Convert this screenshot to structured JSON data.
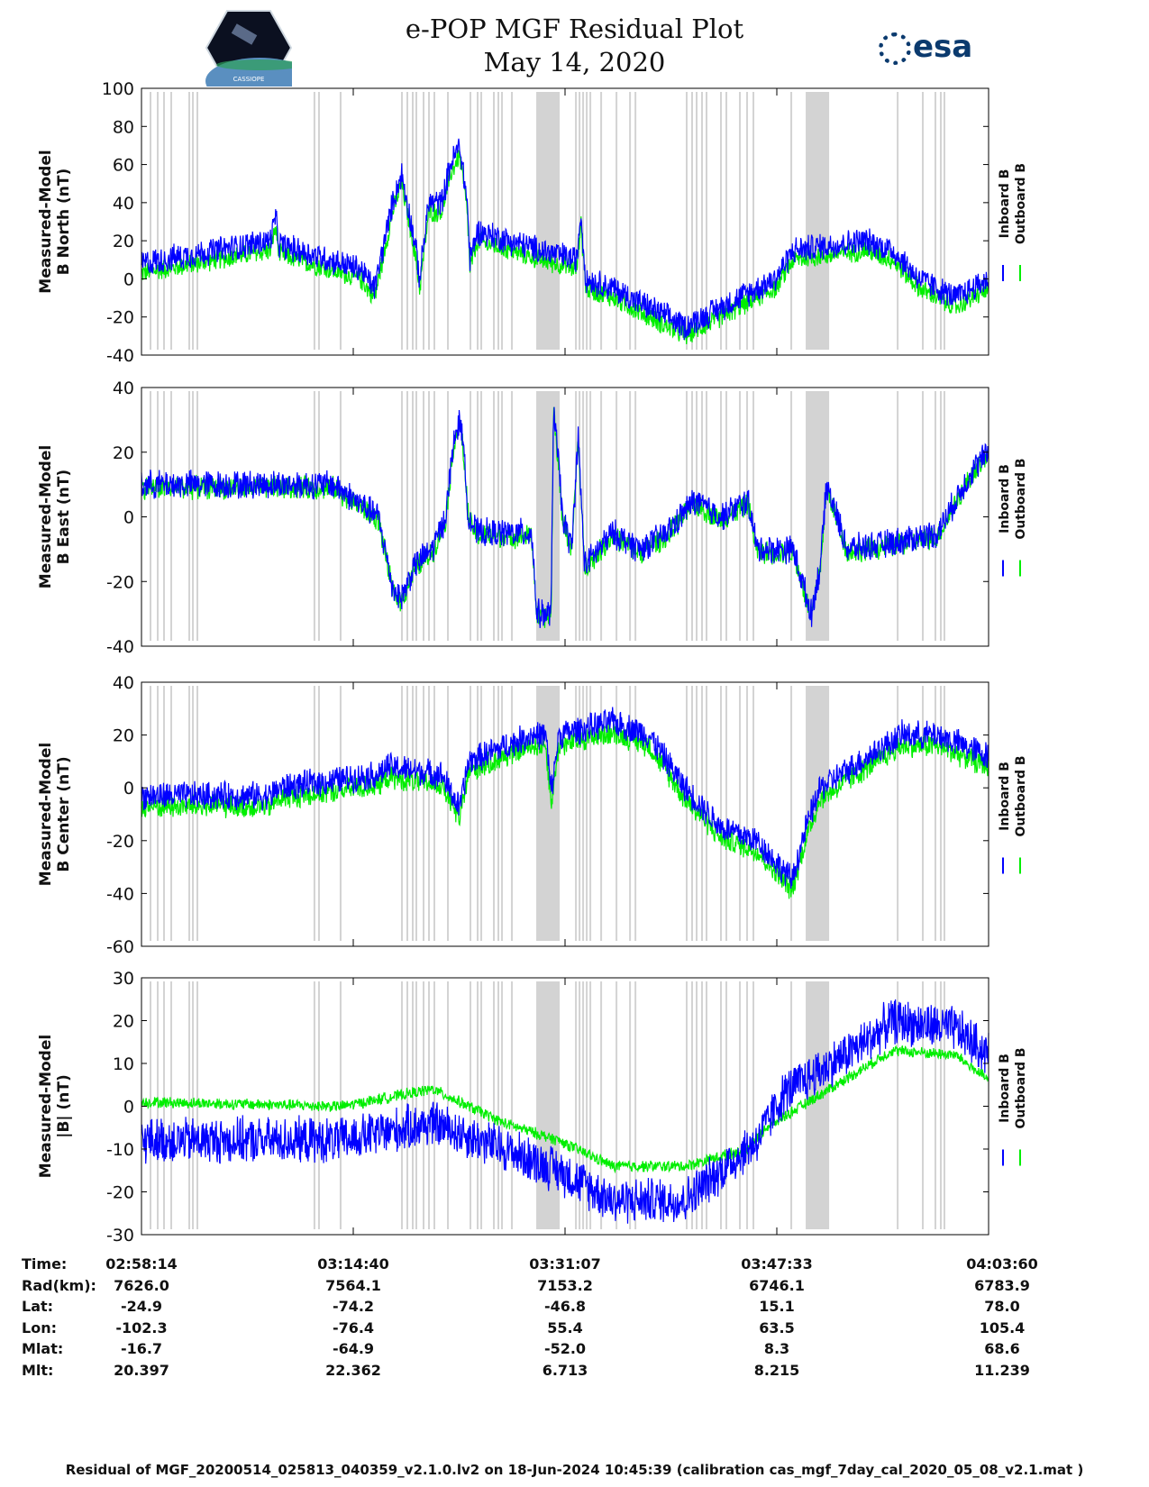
{
  "header": {
    "title_line1": "e-POP MGF Residual Plot",
    "title_line2": "May 14, 2020",
    "logo_left_text": "CASSIOPE",
    "logo_right_text": "esa"
  },
  "colors": {
    "inboard": "#0000ff",
    "outboard": "#00ee00",
    "gap": "#d3d3d3",
    "axis": "#000000"
  },
  "chart_data": [
    {
      "type": "line",
      "ylabel_line1": "Measured-Model",
      "ylabel_line2": "B North (nT)",
      "ylim": [
        -40,
        100
      ],
      "yticks": [
        "100",
        "80",
        "60",
        "40",
        "20",
        "0",
        "-20",
        "-40"
      ],
      "yvals": [
        100,
        80,
        60,
        40,
        20,
        0,
        -20,
        -40
      ],
      "legend": [
        "Inboard B",
        "Outboard B"
      ],
      "noise": [
        8,
        6
      ],
      "outboard_offset": -5,
      "series_trend": [
        [
          0,
          8
        ],
        [
          10,
          20
        ],
        [
          10.4,
          32
        ],
        [
          10.7,
          18
        ],
        [
          17,
          5
        ],
        [
          18.1,
          -5
        ],
        [
          19.5,
          40
        ],
        [
          20.2,
          55
        ],
        [
          21.2,
          20
        ],
        [
          21.6,
          0
        ],
        [
          22.3,
          40
        ],
        [
          23.3,
          40
        ],
        [
          24,
          60
        ],
        [
          24.7,
          70
        ],
        [
          25.3,
          40
        ],
        [
          25.5,
          10
        ],
        [
          26.1,
          25
        ],
        [
          31,
          15
        ],
        [
          33.8,
          10
        ],
        [
          34.1,
          35
        ],
        [
          34.5,
          0
        ],
        [
          36.6,
          -5
        ],
        [
          42.2,
          -25
        ],
        [
          45,
          -15
        ],
        [
          49.2,
          0
        ],
        [
          50.6,
          15
        ],
        [
          56.2,
          20
        ],
        [
          58.3,
          15
        ],
        [
          60.4,
          0
        ],
        [
          63.2,
          -10
        ],
        [
          65.8,
          0
        ]
      ]
    },
    {
      "type": "line",
      "ylabel_line1": "Measured-Model",
      "ylabel_line2": "B East (nT)",
      "ylim": [
        -40,
        40
      ],
      "yticks": [
        "40",
        "20",
        "0",
        "-20",
        "-40"
      ],
      "yvals": [
        40,
        20,
        0,
        -20,
        -40
      ],
      "legend": [
        "Inboard B",
        "Outboard B"
      ],
      "noise": [
        5,
        4
      ],
      "outboard_offset": -1,
      "series_trend": [
        [
          0,
          10
        ],
        [
          14.9,
          10
        ],
        [
          18.4,
          0
        ],
        [
          19.5,
          -22
        ],
        [
          20.2,
          -25
        ],
        [
          21.2,
          -15
        ],
        [
          22.6,
          -10
        ],
        [
          23.6,
          0
        ],
        [
          24.3,
          25
        ],
        [
          24.8,
          30
        ],
        [
          25.4,
          0
        ],
        [
          26.1,
          -5
        ],
        [
          30.3,
          -5
        ],
        [
          30.7,
          -30
        ],
        [
          31.8,
          -30
        ],
        [
          32.0,
          35
        ],
        [
          32.7,
          0
        ],
        [
          33.4,
          -10
        ],
        [
          33.9,
          25
        ],
        [
          34.4,
          -15
        ],
        [
          36.6,
          -5
        ],
        [
          38.7,
          -10
        ],
        [
          40.8,
          -5
        ],
        [
          42.9,
          5
        ],
        [
          45,
          0
        ],
        [
          47.1,
          5
        ],
        [
          47.8,
          -10
        ],
        [
          50.6,
          -10
        ],
        [
          52,
          -30
        ],
        [
          52.7,
          -15
        ],
        [
          53.2,
          10
        ],
        [
          54.8,
          -10
        ],
        [
          58.3,
          -8
        ],
        [
          61.8,
          -5
        ],
        [
          64.6,
          15
        ],
        [
          65.8,
          20
        ]
      ]
    },
    {
      "type": "line",
      "ylabel_line1": "Measured-Model",
      "ylabel_line2": "B Center (nT)",
      "ylim": [
        -60,
        40
      ],
      "yticks": [
        "40",
        "20",
        "0",
        "-20",
        "-40",
        "-60"
      ],
      "yvals": [
        40,
        20,
        0,
        -20,
        -40,
        -60
      ],
      "legend": [
        "Inboard B",
        "Outboard B"
      ],
      "noise": [
        6,
        5
      ],
      "outboard_offset": -4,
      "series_trend": [
        [
          0,
          -3
        ],
        [
          10,
          -3
        ],
        [
          10.7,
          0
        ],
        [
          18.4,
          5
        ],
        [
          19.1,
          8
        ],
        [
          23.3,
          5
        ],
        [
          24.7,
          -8
        ],
        [
          25.4,
          10
        ],
        [
          30.3,
          20
        ],
        [
          31.4,
          20
        ],
        [
          31.8,
          -2
        ],
        [
          32.4,
          20
        ],
        [
          36.6,
          25
        ],
        [
          39.4,
          20
        ],
        [
          42.2,
          0
        ],
        [
          45,
          -15
        ],
        [
          47.8,
          -20
        ],
        [
          50.5,
          -35
        ],
        [
          51.6,
          -15
        ],
        [
          52.7,
          0
        ],
        [
          59,
          20
        ],
        [
          61.8,
          20
        ],
        [
          65.8,
          12
        ]
      ]
    },
    {
      "type": "line",
      "ylabel_line1": "Measured-Model",
      "ylabel_line2": "|B| (nT)",
      "ylim": [
        -30,
        30
      ],
      "yticks": [
        "30",
        "20",
        "10",
        "0",
        "-10",
        "-20",
        "-30"
      ],
      "yvals": [
        30,
        20,
        10,
        0,
        -10,
        -20,
        -30
      ],
      "legend": [
        "Inboard B",
        "Outboard B"
      ],
      "noise": [
        6,
        1.5
      ],
      "series_trend": [
        [
          0,
          -8
        ],
        [
          15.6,
          -8
        ],
        [
          22.6,
          -4
        ],
        [
          28.2,
          -10
        ],
        [
          32.4,
          -15
        ],
        [
          36.6,
          -22
        ],
        [
          42.2,
          -22
        ],
        [
          45,
          -15
        ],
        [
          47.8,
          -8
        ],
        [
          49.9,
          3
        ],
        [
          56.2,
          15
        ],
        [
          58.3,
          20
        ],
        [
          63.2,
          18
        ],
        [
          65.8,
          12
        ]
      ],
      "outboard_trend": [
        [
          0,
          1
        ],
        [
          15.6,
          0
        ],
        [
          22.6,
          4
        ],
        [
          28.2,
          -4
        ],
        [
          32.4,
          -8
        ],
        [
          36.6,
          -14
        ],
        [
          42.2,
          -14
        ],
        [
          47.1,
          -10
        ],
        [
          48.5,
          -5
        ],
        [
          58.3,
          13
        ],
        [
          63.2,
          12
        ],
        [
          65.8,
          6
        ]
      ]
    }
  ],
  "x_range_minutes": [
    0,
    65.77
  ],
  "data_gaps_minutes": [
    0.7,
    1.26,
    1.75,
    2.31,
    3.71,
    3.99,
    4.34,
    13.43,
    13.78,
    15.46,
    20.22,
    20.64,
    21.06,
    21.34,
    21.9,
    22.32,
    22.74,
    23.79,
    25.54,
    26.1,
    26.38,
    27.36,
    27.71,
    27.99,
    28.76,
    33.73,
    34.01,
    34.29,
    34.57,
    34.85,
    35.69,
    36.88,
    37.93,
    38.35,
    42.33,
    42.75,
    43.1,
    43.52,
    43.87,
    44.99,
    45.41,
    46.46,
    47.02,
    47.51,
    50.45,
    58.71,
    60.66,
    61.64,
    62.06,
    62.34
  ],
  "data_gap_bands_minutes": [
    [
      30.65,
      32.47
    ],
    [
      51.57,
      53.39
    ]
  ],
  "info_table": {
    "rows": [
      {
        "label": "Time:",
        "values": [
          "02:58:14",
          "03:14:40",
          "03:31:07",
          "03:47:33",
          "04:03:60"
        ]
      },
      {
        "label": "Rad(km):",
        "values": [
          "7626.0",
          "7564.1",
          "7153.2",
          "6746.1",
          "6783.9"
        ]
      },
      {
        "label": "Lat:",
        "values": [
          "-24.9",
          "-74.2",
          "-46.8",
          "15.1",
          "78.0"
        ]
      },
      {
        "label": "Lon:",
        "values": [
          "-102.3",
          "-76.4",
          "55.4",
          "63.5",
          "105.4"
        ]
      },
      {
        "label": "Mlat:",
        "values": [
          "-16.7",
          "-64.9",
          "-52.0",
          "8.3",
          "68.6"
        ]
      },
      {
        "label": "Mlt:",
        "values": [
          "20.397",
          "22.362",
          "6.713",
          "8.215",
          "11.239"
        ]
      }
    ]
  },
  "footer": "Residual of MGF_20200514_025813_040359_v2.1.0.lv2 on 18-Jun-2024 10:45:39 (calibration cas_mgf_7day_cal_2020_05_08_v2.1.mat )"
}
